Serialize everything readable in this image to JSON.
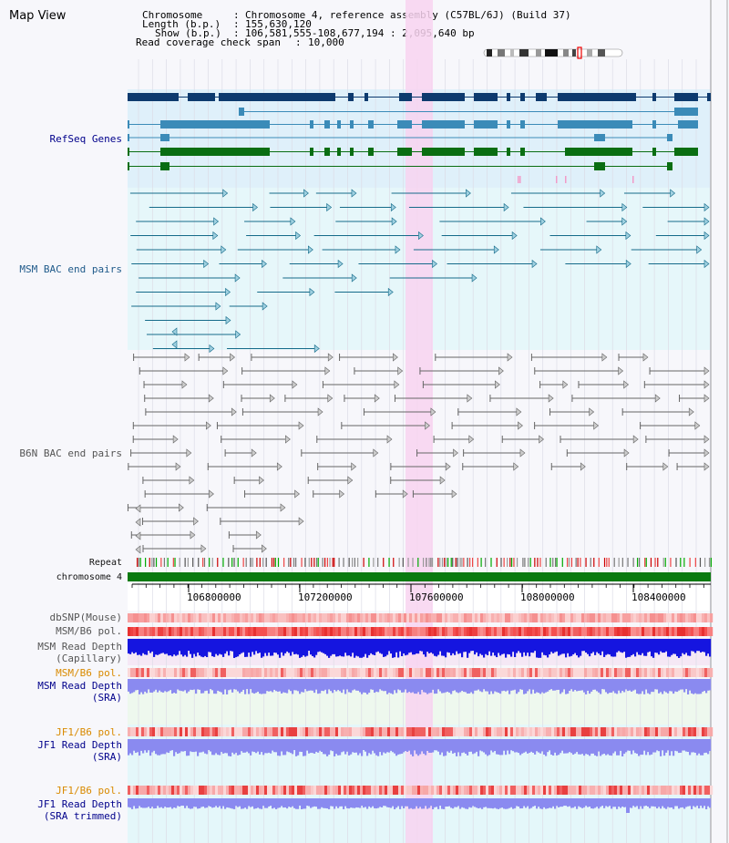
{
  "header": {
    "title": "Map View",
    "chromosome_key": "Chromosome",
    "chromosome_value": "Chromosome 4, reference assembly (C57BL/6J) (Build 37)",
    "length_key": "Length (b.p.)",
    "length_value": "155,630,120",
    "show_key": "Show (b.p.)",
    "show_value": "106,581,555-108,677,194 : 2,095,640 bp",
    "coverage_key": "Read coverage check span",
    "coverage_value": "10,000"
  },
  "tracks": {
    "refseq": "RefSeq Genes",
    "msm_bac": "MSM BAC end pairs",
    "b6n_bac": "B6N BAC end pairs",
    "repeat": "Repeat",
    "chromosome": "chromosome 4",
    "dbsnp": "dbSNP(Mouse)",
    "msm_b6_pol_1": "MSM/B6 pol.",
    "msm_read_depth_cap_1": "MSM Read Depth",
    "msm_read_depth_cap_2": "(Capillary)",
    "msm_b6_pol_2": "MSM/B6 pol.",
    "msm_read_depth_sra_1": "MSM Read Depth",
    "msm_read_depth_sra_2": "(SRA)",
    "jf1_b6_pol_1": "JF1/B6 pol.",
    "jf1_read_depth_sra_1": "JF1 Read Depth",
    "jf1_read_depth_sra_2": "(SRA)",
    "jf1_b6_pol_2": "JF1/B6 pol.",
    "jf1_read_depth_trim_1": "JF1 Read Depth",
    "jf1_read_depth_trim_2": "(SRA trimmed)"
  },
  "ruler": {
    "ticks": [
      "106800000",
      "107200000",
      "107600000",
      "108000000",
      "108400000"
    ]
  },
  "colors": {
    "refseq_bg": "#dff0fa",
    "msm_bg": "#e6f7fa",
    "b6n_bg": "#f7f7fb",
    "highlight": "#f8d4f0",
    "refseq_navy": "#0d3a6e",
    "refseq_mid": "#3b8bb8",
    "refseq_green": "#0a6e12",
    "msm_line": "#156b8a",
    "b6n_line": "#666666",
    "chrom_green": "#0a7a10",
    "read_depth_dark": "#1515e0",
    "read_depth_light": "#8a8af0"
  }
}
